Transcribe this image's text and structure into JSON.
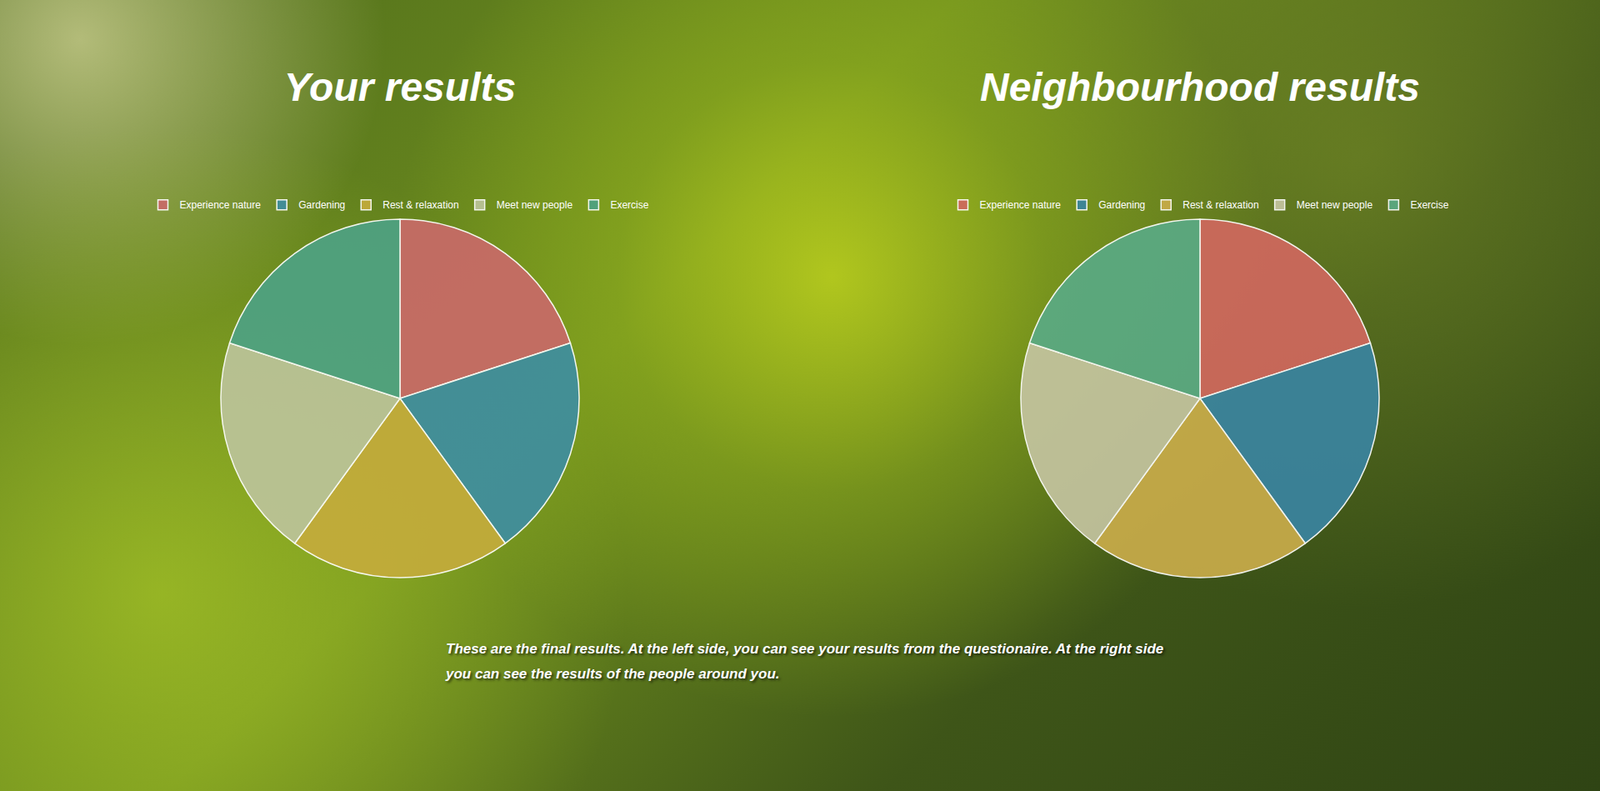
{
  "chart_data": [
    {
      "type": "pie",
      "title": "Your results",
      "categories": [
        "Experience nature",
        "Gardening",
        "Rest & relaxation",
        "Meet new people",
        "Exercise"
      ],
      "values": [
        20,
        20,
        20,
        20,
        20
      ],
      "colors": [
        "#c96a68",
        "#3f8ea0",
        "#c4ac3c",
        "#bcc49a",
        "#4ea283"
      ],
      "legend": "top"
    },
    {
      "type": "pie",
      "title": "Neighbourhood results",
      "categories": [
        "Experience nature",
        "Gardening",
        "Rest & relaxation",
        "Meet new people",
        "Exercise"
      ],
      "values": [
        20,
        20,
        20,
        20,
        20
      ],
      "colors": [
        "#d0685e",
        "#3a84a0",
        "#c9ac4a",
        "#c4c4a0",
        "#5aaa84"
      ],
      "legend": "top"
    }
  ],
  "caption": "These are the final results. At the left side, you can see your results from the questionaire. At the right side you can see the results of the people around you."
}
